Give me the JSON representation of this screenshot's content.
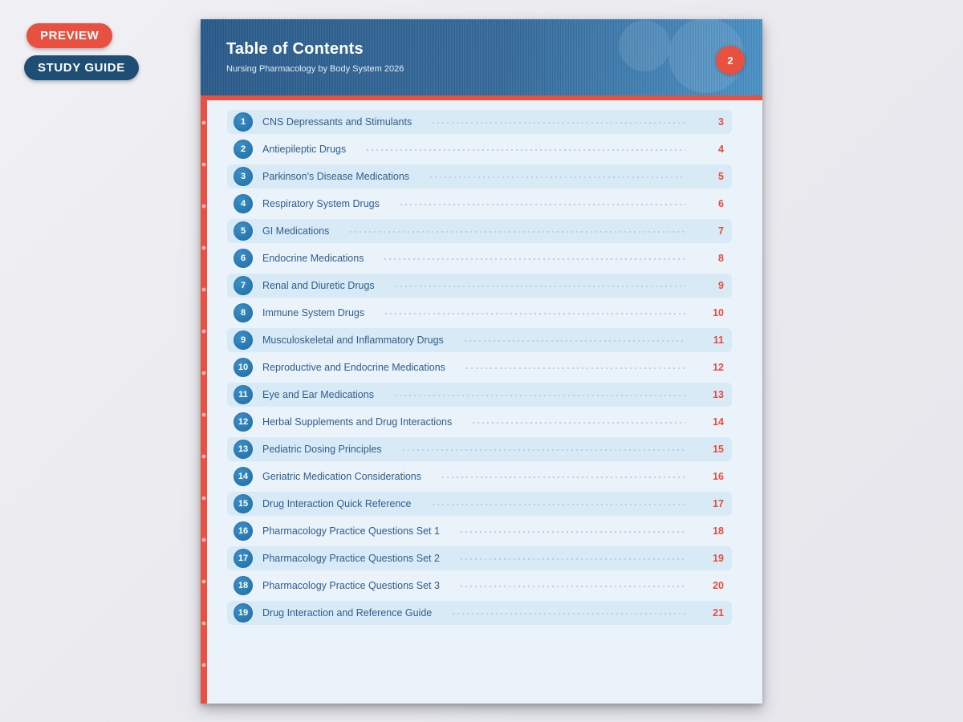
{
  "badges": {
    "preview": "PREVIEW",
    "study_guide": "STUDY GUIDE"
  },
  "header": {
    "title": "Table of Contents",
    "subtitle": "Nursing Pharmacology by Body System 2026",
    "page_number": "2"
  },
  "toc": {
    "items": [
      {
        "num": "1",
        "title": "CNS Depressants and Stimulants",
        "page": "3"
      },
      {
        "num": "2",
        "title": "Antiepileptic Drugs",
        "page": "4"
      },
      {
        "num": "3",
        "title": "Parkinson's Disease Medications",
        "page": "5"
      },
      {
        "num": "4",
        "title": "Respiratory System Drugs",
        "page": "6"
      },
      {
        "num": "5",
        "title": "GI Medications",
        "page": "7"
      },
      {
        "num": "6",
        "title": "Endocrine Medications",
        "page": "8"
      },
      {
        "num": "7",
        "title": "Renal and Diuretic Drugs",
        "page": "9"
      },
      {
        "num": "8",
        "title": "Immune System Drugs",
        "page": "10"
      },
      {
        "num": "9",
        "title": "Musculoskeletal and Inflammatory Drugs",
        "page": "11"
      },
      {
        "num": "10",
        "title": "Reproductive and Endocrine Medications",
        "page": "12"
      },
      {
        "num": "11",
        "title": "Eye and Ear Medications",
        "page": "13"
      },
      {
        "num": "12",
        "title": "Herbal Supplements and Drug Interactions",
        "page": "14"
      },
      {
        "num": "13",
        "title": "Pediatric Dosing Principles",
        "page": "15"
      },
      {
        "num": "14",
        "title": "Geriatric Medication Considerations",
        "page": "16"
      },
      {
        "num": "15",
        "title": "Drug Interaction Quick Reference",
        "page": "17"
      },
      {
        "num": "16",
        "title": "Pharmacology Practice Questions Set 1",
        "page": "18"
      },
      {
        "num": "17",
        "title": "Pharmacology Practice Questions Set 2",
        "page": "19"
      },
      {
        "num": "18",
        "title": "Pharmacology Practice Questions Set 3",
        "page": "20"
      },
      {
        "num": "19",
        "title": "Drug Interaction and Reference Guide",
        "page": "21"
      }
    ]
  },
  "colors": {
    "accent_red": "#e8503f",
    "navy": "#1f4e74",
    "circle_blue": "#2878b0",
    "header_left": "#2b5c8c",
    "header_right": "#4d95c9",
    "doc_bg": "#eaf2fa",
    "row_highlight": "#d9eaf7",
    "title_blue": "#2e5e8c",
    "leader_gray": "#b9c9d8"
  }
}
